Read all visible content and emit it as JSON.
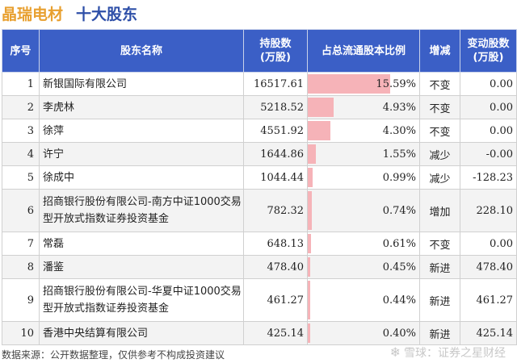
{
  "header": {
    "company": "晶瑞电材",
    "subtitle": "十大股东"
  },
  "chart_data": {
    "type": "table",
    "columns": [
      "序号",
      "股东名称",
      "持股数\n(万股)",
      "占总流通股本比例",
      "增减",
      "变动股数\n(万股)"
    ],
    "max_ratio": 15.59,
    "rows": [
      {
        "idx": "1",
        "name": "新银国际有限公司",
        "shares": "16517.61",
        "ratio": 15.59,
        "ratio_text": "15.59%",
        "change": "不变",
        "delta": "0.00",
        "status": "same"
      },
      {
        "idx": "2",
        "name": "李虎林",
        "shares": "5218.52",
        "ratio": 4.93,
        "ratio_text": "4.93%",
        "change": "不变",
        "delta": "0.00",
        "status": "same"
      },
      {
        "idx": "3",
        "name": "徐萍",
        "shares": "4551.92",
        "ratio": 4.3,
        "ratio_text": "4.30%",
        "change": "不变",
        "delta": "0.00",
        "status": "same"
      },
      {
        "idx": "4",
        "name": "许宁",
        "shares": "1644.86",
        "ratio": 1.55,
        "ratio_text": "1.55%",
        "change": "减少",
        "delta": "-0.00",
        "status": "down"
      },
      {
        "idx": "5",
        "name": "徐成中",
        "shares": "1044.44",
        "ratio": 0.99,
        "ratio_text": "0.99%",
        "change": "减少",
        "delta": "-128.23",
        "status": "down"
      },
      {
        "idx": "6",
        "name": "招商银行股份有限公司-南方中证1000交易型开放式指数证券投资基金",
        "shares": "782.32",
        "ratio": 0.74,
        "ratio_text": "0.74%",
        "change": "增加",
        "delta": "228.10",
        "status": "up",
        "tall": true
      },
      {
        "idx": "7",
        "name": "常磊",
        "shares": "648.13",
        "ratio": 0.61,
        "ratio_text": "0.61%",
        "change": "不变",
        "delta": "0.00",
        "status": "same"
      },
      {
        "idx": "8",
        "name": "潘鉴",
        "shares": "478.40",
        "ratio": 0.45,
        "ratio_text": "0.45%",
        "change": "新进",
        "delta": "478.40",
        "status": "up"
      },
      {
        "idx": "9",
        "name": "招商银行股份有限公司-华夏中证1000交易型开放式指数证券投资基金",
        "shares": "461.27",
        "ratio": 0.44,
        "ratio_text": "0.44%",
        "change": "新进",
        "delta": "461.27",
        "status": "up",
        "tall": true
      },
      {
        "idx": "10",
        "name": "香港中央结算有限公司",
        "shares": "425.14",
        "ratio": 0.4,
        "ratio_text": "0.40%",
        "change": "新进",
        "delta": "425.14",
        "status": "up"
      }
    ]
  },
  "footer": {
    "source": "数据来源：公开数据整理，仅供参考不构成投资建议",
    "logo_text": "雪球：证券之星财经"
  }
}
